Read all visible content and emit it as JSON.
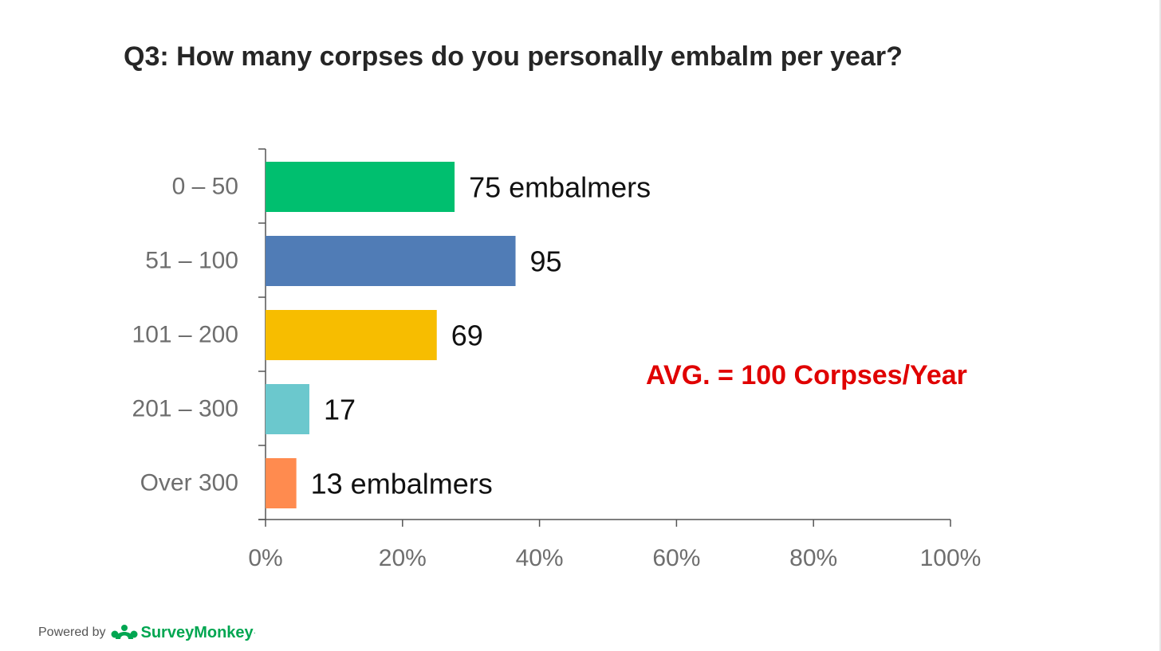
{
  "title": "Q3: How many corpses do you personally embalm per year?",
  "annotation": "AVG. = 100 Corpses/Year",
  "footer": {
    "powered_by": "Powered by",
    "brand": "SurveyMonkey",
    "brand_mark": "·",
    "logo_icon": "surveymonkey-logo-icon",
    "brand_color": "#00a651"
  },
  "chart_data": {
    "type": "bar",
    "orientation": "horizontal",
    "title": "Q3: How many corpses do you personally embalm per year?",
    "categories": [
      "0 – 50",
      "51 – 100",
      "101 – 200",
      "201 – 300",
      "Over 300"
    ],
    "values": [
      27.6,
      36.5,
      25.0,
      6.4,
      4.5
    ],
    "value_unit": "%",
    "data_labels": [
      "75 embalmers",
      "95",
      "69",
      "17",
      "13 embalmers"
    ],
    "bar_colors": [
      "#00bf6f",
      "#507cb6",
      "#f7bd00",
      "#6bc8cd",
      "#ff8b4f"
    ],
    "xlim": [
      0,
      100
    ],
    "x_ticks": [
      "0%",
      "20%",
      "40%",
      "60%",
      "80%",
      "100%"
    ],
    "xlabel": "",
    "ylabel": "",
    "grid": false,
    "legend": "none"
  }
}
